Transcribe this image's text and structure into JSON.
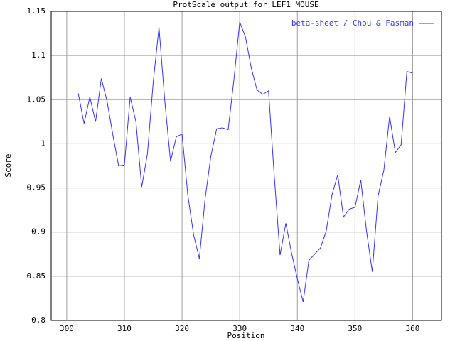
{
  "chart_data": {
    "type": "line",
    "title": "ProtScale output for LEF1 MOUSE",
    "x_label": "Position",
    "y_label": "Score",
    "x": [
      302,
      303,
      304,
      305,
      306,
      307,
      308,
      309,
      310,
      311,
      312,
      313,
      314,
      315,
      316,
      317,
      318,
      319,
      320,
      321,
      322,
      323,
      324,
      325,
      326,
      327,
      328,
      329,
      330,
      331,
      332,
      333,
      334,
      335,
      336,
      337,
      338,
      339,
      340,
      341,
      342,
      343,
      344,
      345,
      346,
      347,
      348,
      349,
      350,
      351,
      352,
      353,
      354,
      355,
      356,
      357,
      358,
      359,
      360
    ],
    "series": [
      {
        "name": "beta-sheet / Chou & Fasman",
        "color": "#3333ff",
        "values": [
          1.057,
          1.023,
          1.053,
          1.025,
          1.074,
          1.048,
          1.01,
          0.975,
          0.976,
          1.053,
          1.025,
          0.951,
          0.989,
          1.07,
          1.132,
          1.049,
          0.98,
          1.008,
          1.011,
          0.942,
          0.897,
          0.87,
          0.938,
          0.986,
          1.017,
          1.018,
          1.016,
          1.073,
          1.138,
          1.121,
          1.086,
          1.061,
          1.056,
          1.06,
          0.963,
          0.874,
          0.91,
          0.876,
          0.847,
          0.821,
          0.868,
          0.875,
          0.882,
          0.901,
          0.942,
          0.965,
          0.917,
          0.926,
          0.928,
          0.959,
          0.901,
          0.855,
          0.941,
          0.97,
          1.031,
          0.99,
          0.999,
          1.082,
          1.08
        ]
      }
    ],
    "xlim": [
      297.3,
      365
    ],
    "ylim": [
      0.8,
      1.15
    ],
    "xticks": [
      300,
      310,
      320,
      330,
      340,
      350,
      360
    ],
    "yticks": [
      0.8,
      0.85,
      0.9,
      0.95,
      1,
      1.05,
      1.1,
      1.15
    ],
    "grid": true,
    "legend": "top-right"
  }
}
